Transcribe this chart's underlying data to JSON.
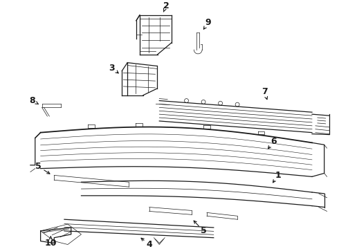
{
  "bg_color": "#ffffff",
  "lc": "#1a1a1a",
  "figsize": [
    4.9,
    3.6
  ],
  "dpi": 100
}
